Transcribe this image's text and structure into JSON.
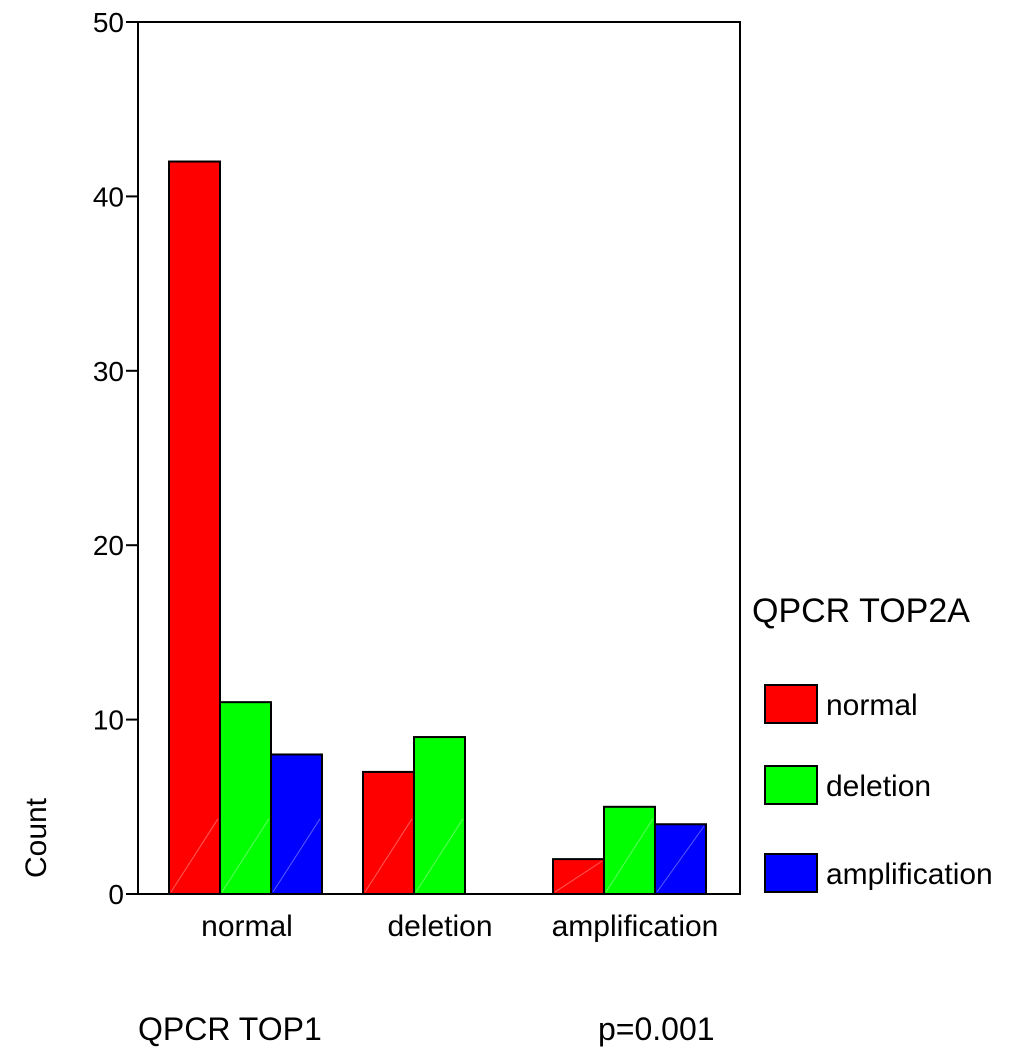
{
  "chart_data": {
    "type": "bar",
    "categories": [
      "normal",
      "deletion",
      "amplification"
    ],
    "series": [
      {
        "name": "normal",
        "values": [
          42,
          7,
          2
        ],
        "color": "#ff0000"
      },
      {
        "name": "deletion",
        "values": [
          11,
          9,
          5
        ],
        "color": "#00ff00"
      },
      {
        "name": "amplification",
        "values": [
          8,
          0,
          4
        ],
        "color": "#0000ff"
      }
    ],
    "title": "",
    "xlabel": "QPCR TOP1",
    "ylabel": "Count",
    "ylim": [
      0,
      50
    ],
    "yticks": [
      0,
      10,
      20,
      30,
      40,
      50
    ],
    "legend_title": "QPCR TOP2A",
    "legend_position": "right",
    "annotation": "p=0.001",
    "grid": false
  }
}
